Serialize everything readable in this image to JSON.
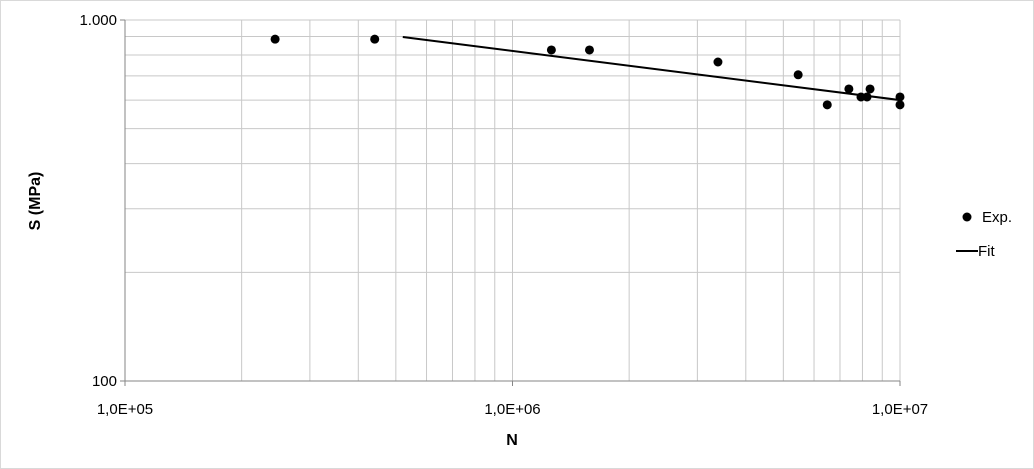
{
  "chart_data": {
    "type": "scatter",
    "xlabel": "N",
    "ylabel": "S (MPa)",
    "x_scale": "log",
    "y_scale": "log",
    "xlim": [
      100000,
      10000000
    ],
    "ylim": [
      100,
      1000
    ],
    "x_ticks": [
      {
        "value": 100000,
        "label": "1,0E+05"
      },
      {
        "value": 1000000,
        "label": "1,0E+06"
      },
      {
        "value": 10000000,
        "label": "1,0E+07"
      }
    ],
    "y_ticks": [
      {
        "value": 100,
        "label": "100"
      },
      {
        "value": 1000,
        "label": "1.000"
      }
    ],
    "grid": true,
    "legend_position": "right",
    "colors": {
      "points": "#000000",
      "line": "#000000",
      "grid": "#c8c8c8"
    },
    "series": [
      {
        "name": "Exp.",
        "kind": "scatter",
        "points": [
          [
            244000,
            885
          ],
          [
            441000,
            885
          ],
          [
            1260000,
            826
          ],
          [
            1580000,
            826
          ],
          [
            3390000,
            765
          ],
          [
            5460000,
            705
          ],
          [
            6490000,
            582
          ],
          [
            7380000,
            644
          ],
          [
            7930000,
            612
          ],
          [
            8220000,
            612
          ],
          [
            8370000,
            644
          ],
          [
            10000000,
            612
          ],
          [
            10000000,
            582
          ]
        ]
      },
      {
        "name": "Fit",
        "kind": "line",
        "points": [
          [
            521000,
            897
          ],
          [
            10000000,
            600
          ]
        ]
      }
    ]
  }
}
